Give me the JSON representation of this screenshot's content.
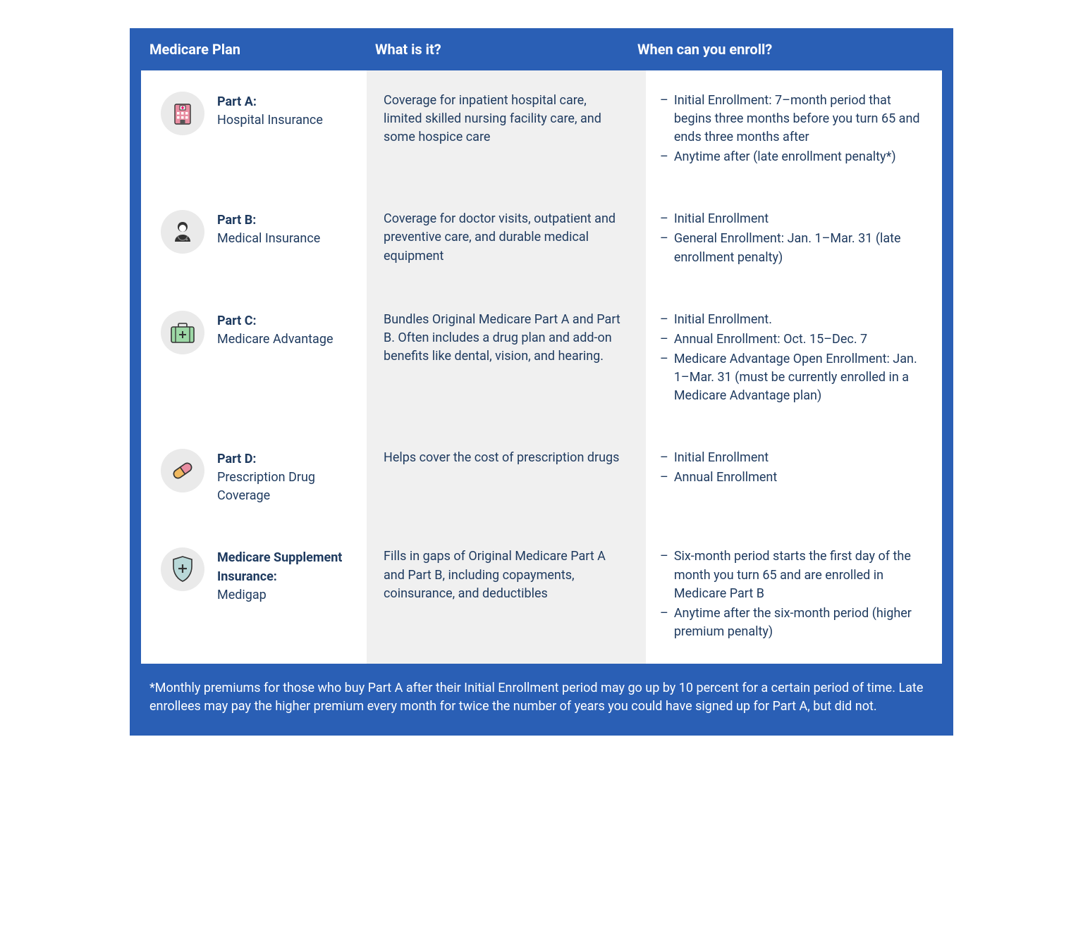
{
  "colors": {
    "frame_bg": "#2a5fb5",
    "body_bg": "#ffffff",
    "desc_bg": "#f0f0f0",
    "icon_bg": "#eaeaea",
    "text": "#1e3a5f",
    "header_text": "#ffffff"
  },
  "headers": {
    "col1": "Medicare Plan",
    "col2": "What is it?",
    "col3": "When can you enroll?"
  },
  "rows": [
    {
      "icon": "hospital",
      "plan_bold": "Part A:",
      "plan_sub": "Hospital Insurance",
      "desc": "Coverage for inpatient hospital care, limited skilled nursing facility care, and some hospice care",
      "enroll": [
        "Initial Enrollment: 7–month period that begins three months before you turn 65 and ends three months after",
        "Anytime after (late enrollment penalty*)"
      ]
    },
    {
      "icon": "doctor",
      "plan_bold": "Part B:",
      "plan_sub": "Medical Insurance",
      "desc": "Coverage for doctor visits, outpatient and preventive care, and durable medical equipment",
      "enroll": [
        "Initial Enrollment",
        "General Enrollment: Jan. 1–Mar. 31 (late enrollment penalty)"
      ]
    },
    {
      "icon": "medkit",
      "plan_bold": "Part C:",
      "plan_sub": "Medicare Advantage",
      "desc": "Bundles Original Medicare Part A and Part B. Often includes a drug plan and add-on benefits like dental, vision, and hearing.",
      "enroll": [
        "Initial Enrollment.",
        "Annual Enrollment: Oct. 15–Dec. 7",
        "Medicare Advantage Open Enrollment: Jan. 1–Mar. 31 (must be currently enrolled in a Medicare Advantage plan)"
      ]
    },
    {
      "icon": "pill",
      "plan_bold": "Part D:",
      "plan_sub": "Prescription Drug Coverage",
      "desc": "Helps cover the cost of prescription drugs",
      "enroll": [
        "Initial Enrollment",
        "Annual Enrollment"
      ]
    },
    {
      "icon": "shield",
      "plan_bold": "Medicare Supplement Insurance:",
      "plan_sub": "Medigap",
      "desc": "Fills in gaps of Original Medicare Part A and Part B, including copayments, coinsurance, and deductibles",
      "enroll": [
        "Six-month period starts the first day of the month you turn 65 and are enrolled in Medicare Part B",
        "Anytime after the six-month period (higher premium penalty)"
      ]
    }
  ],
  "footnote": "*Monthly premiums for those who buy Part A after their Initial Enrollment period may go up by 10 percent for a certain period of time. Late enrollees may pay the higher premium every month for twice the number of years you could have signed up for Part A, but did not."
}
